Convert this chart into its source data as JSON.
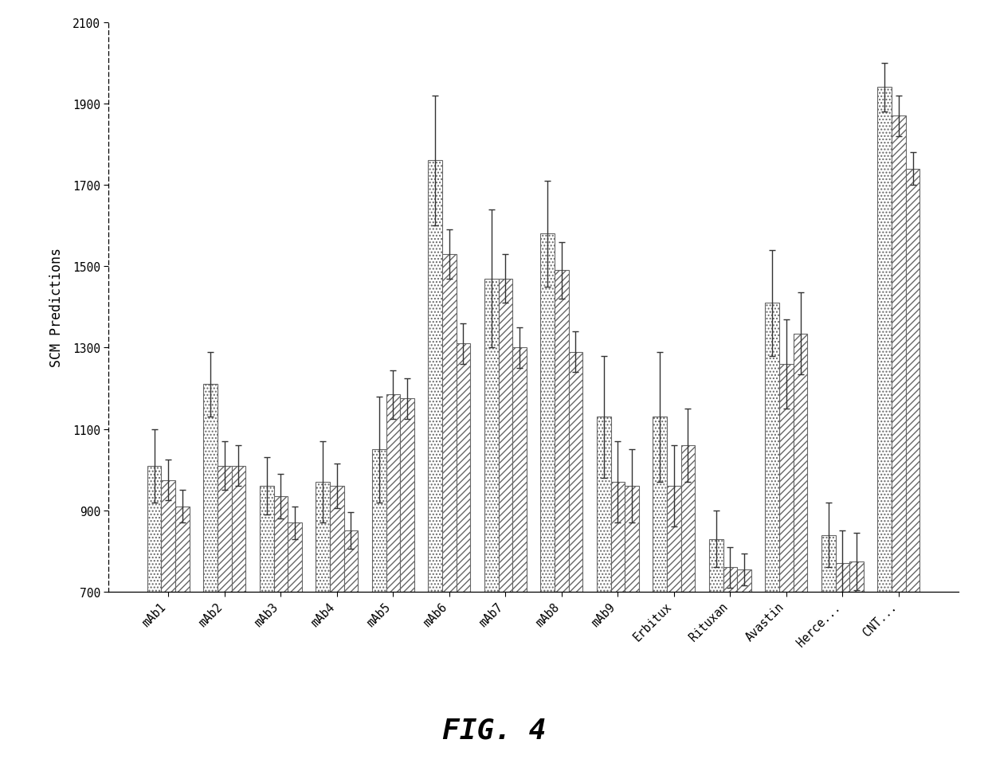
{
  "categories": [
    "mAb1",
    "mAb2",
    "mAb3",
    "mAb4",
    "mAb5",
    "mAb6",
    "mAb7",
    "mAb8",
    "mAb9",
    "Erbitux",
    "Rituxan",
    "Avastin",
    "Herce...",
    "CNT..."
  ],
  "bar1_values": [
    1010,
    1210,
    960,
    970,
    1050,
    1760,
    1470,
    1580,
    1130,
    1130,
    830,
    1410,
    840,
    1940
  ],
  "bar1_errors": [
    90,
    80,
    70,
    100,
    130,
    160,
    170,
    130,
    150,
    160,
    70,
    130,
    80,
    60
  ],
  "bar2_values": [
    975,
    1010,
    935,
    960,
    1185,
    1530,
    1470,
    1490,
    970,
    960,
    760,
    1260,
    770,
    1870
  ],
  "bar2_errors": [
    50,
    60,
    55,
    55,
    60,
    60,
    60,
    70,
    100,
    100,
    50,
    110,
    80,
    50
  ],
  "bar3_values": [
    910,
    1010,
    870,
    850,
    1175,
    1310,
    1300,
    1290,
    960,
    1060,
    755,
    1335,
    775,
    1740
  ],
  "bar3_errors": [
    40,
    50,
    40,
    45,
    50,
    50,
    50,
    50,
    90,
    90,
    40,
    100,
    70,
    40
  ],
  "ylabel": "SCM Predictions",
  "ylim": [
    700,
    2100
  ],
  "yticks": [
    700,
    900,
    1100,
    1300,
    1500,
    1700,
    1900,
    2100
  ],
  "figure_label": "FIG. 4",
  "background_color": "#ffffff",
  "bar_width": 0.25,
  "bar1_hatch": "....",
  "bar2_hatch": "////",
  "bar3_hatch": "////",
  "edge_color": "#666666",
  "ecolor": "#333333"
}
